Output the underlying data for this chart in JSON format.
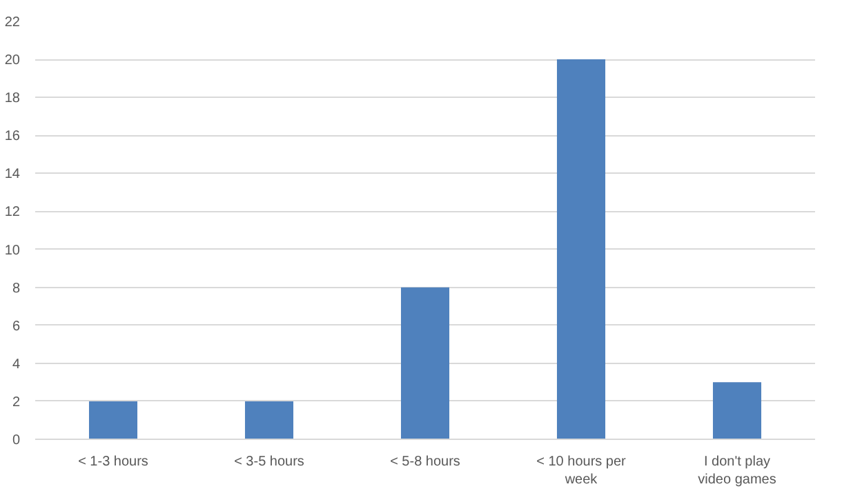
{
  "chart_data": {
    "type": "bar",
    "categories": [
      "< 1-3 hours",
      "< 3-5 hours",
      "< 5-8 hours",
      "< 10 hours per week",
      "I don't play video games"
    ],
    "values": [
      2,
      2,
      8,
      20,
      3
    ],
    "color": "#4f81bd",
    "ylim": [
      0,
      22
    ],
    "yticks": [
      0,
      2,
      4,
      6,
      8,
      10,
      12,
      14,
      16,
      18,
      20,
      22
    ],
    "grid": "y"
  }
}
